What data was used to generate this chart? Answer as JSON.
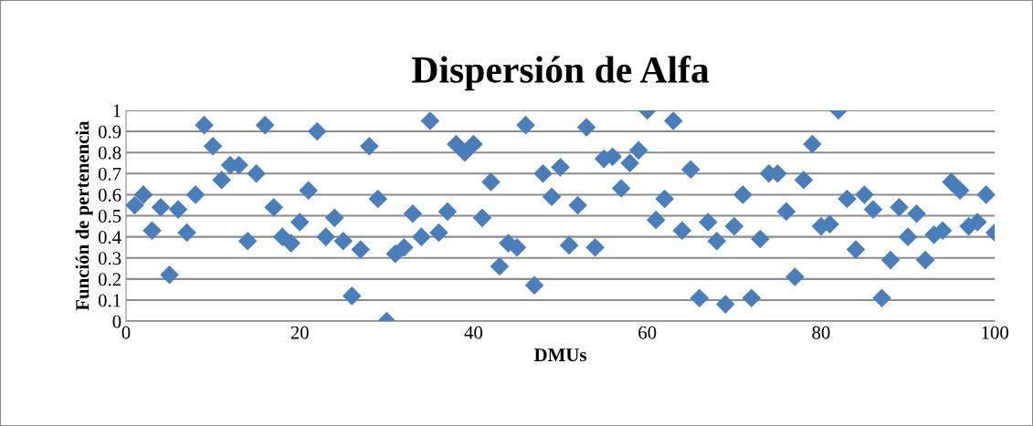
{
  "chart_data": {
    "type": "scatter",
    "title": "Dispersión de Alfa",
    "xlabel": "DMUs",
    "ylabel": "Función de pertenencia",
    "x": [
      1,
      2,
      3,
      4,
      5,
      6,
      7,
      8,
      9,
      10,
      11,
      12,
      13,
      14,
      15,
      16,
      17,
      18,
      19,
      20,
      21,
      22,
      23,
      24,
      25,
      26,
      27,
      28,
      29,
      30,
      31,
      32,
      33,
      34,
      35,
      36,
      37,
      38,
      39,
      40,
      41,
      42,
      43,
      44,
      45,
      46,
      47,
      48,
      49,
      50,
      51,
      52,
      53,
      54,
      55,
      56,
      57,
      58,
      59,
      60,
      61,
      62,
      63,
      64,
      65,
      66,
      67,
      68,
      69,
      70,
      71,
      72,
      73,
      74,
      75,
      76,
      77,
      78,
      79,
      80,
      81,
      82,
      83,
      84,
      85,
      86,
      87,
      88,
      89,
      90,
      91,
      92,
      93,
      94,
      95,
      96,
      97,
      98,
      99,
      100
    ],
    "series": [
      {
        "color": "#4a7ebb",
        "values": [
          0.55,
          0.6,
          0.43,
          0.54,
          0.22,
          0.53,
          0.42,
          0.6,
          0.93,
          0.83,
          0.67,
          0.74,
          0.74,
          0.38,
          0.7,
          0.93,
          0.54,
          0.4,
          0.37,
          0.47,
          0.62,
          0.9,
          0.4,
          0.49,
          0.38,
          0.12,
          0.34,
          0.83,
          0.58,
          0.0,
          0.32,
          0.35,
          0.51,
          0.4,
          0.95,
          0.42,
          0.52,
          0.84,
          0.8,
          0.84,
          0.49,
          0.66,
          0.26,
          0.37,
          0.35,
          0.93,
          0.17,
          0.7,
          0.59,
          0.73,
          0.36,
          0.55,
          0.92,
          0.35,
          0.77,
          0.78,
          0.63,
          0.75,
          0.81,
          1.0,
          0.48,
          0.58,
          0.95,
          0.43,
          0.72,
          0.11,
          0.47,
          0.38,
          0.08,
          0.45,
          0.6,
          0.11,
          0.39,
          0.7,
          0.7,
          0.52,
          0.21,
          0.67,
          0.84,
          0.45,
          0.46,
          1.0,
          0.58,
          0.34,
          0.6,
          0.53,
          0.11,
          0.29,
          0.54,
          0.4,
          0.51,
          0.29,
          0.41,
          0.43,
          0.66,
          0.62,
          0.45,
          0.47,
          0.6,
          0.42
        ]
      }
    ],
    "xlim": [
      0,
      100
    ],
    "xticks": [
      0,
      20,
      40,
      60,
      80,
      100
    ],
    "ylim": [
      0,
      1
    ],
    "yticks": [
      0,
      0.1,
      0.2,
      0.3,
      0.4,
      0.5,
      0.6,
      0.7,
      0.8,
      0.9,
      1
    ],
    "grid": "y",
    "marker": "diamond",
    "legend": false
  }
}
